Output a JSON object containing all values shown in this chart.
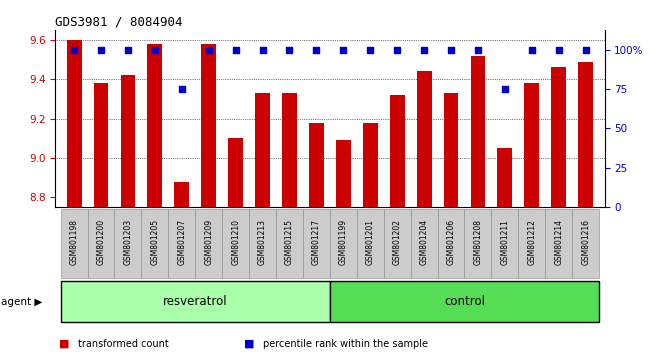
{
  "title": "GDS3981 / 8084904",
  "samples": [
    "GSM801198",
    "GSM801200",
    "GSM801203",
    "GSM801205",
    "GSM801207",
    "GSM801209",
    "GSM801210",
    "GSM801213",
    "GSM801215",
    "GSM801217",
    "GSM801199",
    "GSM801201",
    "GSM801202",
    "GSM801204",
    "GSM801206",
    "GSM801208",
    "GSM801211",
    "GSM801212",
    "GSM801214",
    "GSM801216"
  ],
  "bar_values": [
    9.6,
    9.38,
    9.42,
    9.58,
    8.88,
    9.58,
    9.1,
    9.33,
    9.33,
    9.18,
    9.09,
    9.18,
    9.32,
    9.44,
    9.33,
    9.52,
    9.05,
    9.38,
    9.46,
    9.49
  ],
  "percentile_values": [
    100,
    100,
    100,
    100,
    75,
    100,
    100,
    100,
    100,
    100,
    100,
    100,
    100,
    100,
    100,
    100,
    75,
    100,
    100,
    100
  ],
  "bar_color": "#cc0000",
  "dot_color": "#0000cc",
  "ylim_left": [
    8.75,
    9.65
  ],
  "ylim_right": [
    0,
    112.5
  ],
  "yticks_left": [
    8.8,
    9.0,
    9.2,
    9.4,
    9.6
  ],
  "yticks_right": [
    0,
    25,
    50,
    75,
    100
  ],
  "resveratrol_count": 10,
  "control_count": 10,
  "resveratrol_label": "resveratrol",
  "control_label": "control",
  "agent_label": "agent",
  "legend_bar_label": "transformed count",
  "legend_dot_label": "percentile rank within the sample",
  "bg_color_resveratrol": "#aaffaa",
  "bg_color_control": "#55dd55",
  "tick_bg_color": "#cccccc",
  "bar_width": 0.55
}
